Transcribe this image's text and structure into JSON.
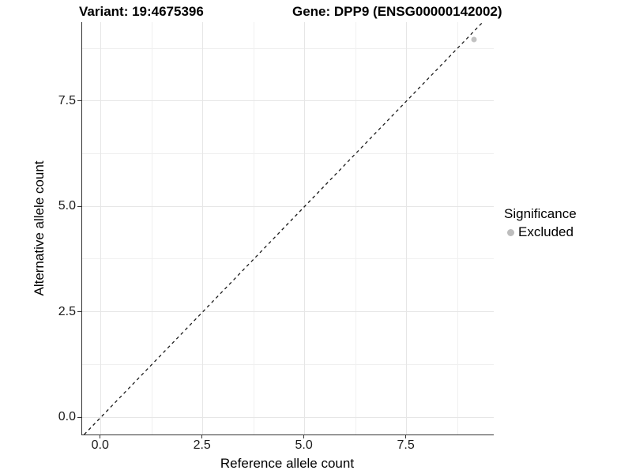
{
  "titles": {
    "variant": "Variant: 19:4675396",
    "gene": "Gene: DPP9 (ENSG00000142002)"
  },
  "chart_data": {
    "type": "scatter",
    "title_left": "Variant: 19:4675396",
    "title_right": "Gene: DPP9 (ENSG00000142002)",
    "xlabel": "Reference allele count",
    "ylabel": "Alternative allele count",
    "xlim": [
      -0.46,
      9.64
    ],
    "ylim": [
      -0.41,
      9.37
    ],
    "x_major_ticks": [
      0,
      2.5,
      5,
      7.5
    ],
    "x_tick_labels": [
      "0.0",
      "2.5",
      "5.0",
      "7.5"
    ],
    "y_major_ticks": [
      0,
      2.5,
      5,
      7.5
    ],
    "y_tick_labels": [
      "0.0",
      "2.5",
      "5.0",
      "7.5"
    ],
    "x_minor_ticks": [
      1.25,
      3.75,
      6.25,
      8.75
    ],
    "y_minor_ticks": [
      1.25,
      3.75,
      6.25,
      8.75
    ],
    "grid": true,
    "points": [
      {
        "x": 9.15,
        "y": 8.95,
        "series": "Excluded",
        "color": "#c2c2c2"
      }
    ],
    "reference_line": {
      "type": "identity",
      "slope": 1,
      "intercept": 0,
      "style": "dashed",
      "color": "#1a1a1a"
    },
    "legend": {
      "title": "Significance",
      "position": "right",
      "items": [
        {
          "label": "Excluded",
          "color": "#bdbdbd",
          "marker": "circle"
        }
      ]
    },
    "colors": {
      "background": "#ffffff",
      "grid_major": "#e6e6e6",
      "grid_minor": "#f0f0f0",
      "axis_line": "#333333",
      "tick_text": "#1a1a1a"
    }
  }
}
